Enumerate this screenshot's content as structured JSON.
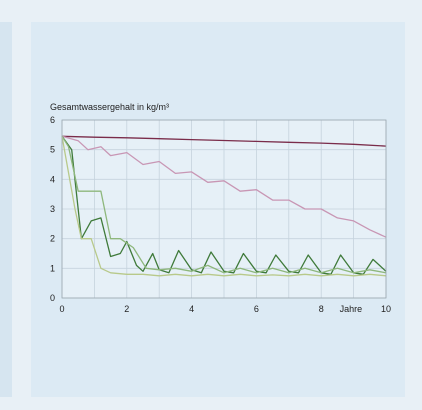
{
  "chart_data": {
    "type": "line",
    "ylabel": "Gesamtwassergehalt in kg/m³",
    "xlabel": "Jahre",
    "xlim": [
      0,
      10
    ],
    "ylim": [
      0,
      6
    ],
    "xticks": [
      0,
      2,
      4,
      6,
      8,
      10
    ],
    "yticks": [
      0,
      1,
      2,
      3,
      4,
      5,
      6
    ],
    "grid": true,
    "colors": {
      "series_1": "#7a2c4a",
      "series_2": "#c896b4",
      "series_3": "#3f7a3a",
      "series_4": "#8eb77c",
      "series_5": "#b8c98a",
      "grid": "#c5d3dd",
      "frame": "#9aa7b0"
    },
    "series": [
      {
        "x": [
          0,
          1,
          2,
          3,
          4,
          5,
          6,
          7,
          8,
          9,
          10
        ],
        "y": [
          5.45,
          5.42,
          5.4,
          5.37,
          5.34,
          5.31,
          5.28,
          5.25,
          5.22,
          5.18,
          5.12
        ]
      },
      {
        "x": [
          0,
          0.5,
          0.8,
          1.2,
          1.5,
          2.0,
          2.5,
          3.0,
          3.5,
          4.0,
          4.5,
          5.0,
          5.5,
          6.0,
          6.5,
          7.0,
          7.5,
          8.0,
          8.5,
          9.0,
          9.5,
          10.0
        ],
        "y": [
          5.45,
          5.3,
          5.0,
          5.1,
          4.8,
          4.9,
          4.5,
          4.6,
          4.2,
          4.25,
          3.9,
          3.95,
          3.6,
          3.65,
          3.3,
          3.3,
          3.0,
          3.0,
          2.7,
          2.6,
          2.3,
          2.05
        ]
      },
      {
        "x": [
          0,
          0.3,
          0.6,
          0.9,
          1.2,
          1.5,
          1.8,
          2.0,
          2.3,
          2.5,
          2.8,
          3.0,
          3.3,
          3.6,
          4.0,
          4.3,
          4.6,
          5.0,
          5.3,
          5.6,
          6.0,
          6.3,
          6.6,
          7.0,
          7.3,
          7.6,
          8.0,
          8.3,
          8.6,
          9.0,
          9.3,
          9.6,
          10.0
        ],
        "y": [
          5.45,
          5.0,
          2.0,
          2.6,
          2.7,
          1.4,
          1.5,
          1.9,
          1.1,
          0.9,
          1.5,
          0.95,
          0.85,
          1.6,
          0.95,
          0.85,
          1.55,
          0.9,
          0.85,
          1.5,
          0.9,
          0.85,
          1.45,
          0.9,
          0.85,
          1.45,
          0.85,
          0.8,
          1.45,
          0.85,
          0.8,
          1.3,
          0.9
        ]
      },
      {
        "x": [
          0,
          0.2,
          0.5,
          0.8,
          1.2,
          1.5,
          1.8,
          2.2,
          2.6,
          3.0,
          3.5,
          4.0,
          4.5,
          5.0,
          5.5,
          6.0,
          6.5,
          7.0,
          7.5,
          8.0,
          8.5,
          9.0,
          9.5,
          10.0
        ],
        "y": [
          5.45,
          5.1,
          3.6,
          3.6,
          3.6,
          2.0,
          2.0,
          1.7,
          1.0,
          0.95,
          1.0,
          0.9,
          1.1,
          0.85,
          1.0,
          0.85,
          1.0,
          0.85,
          1.0,
          0.85,
          1.0,
          0.85,
          0.95,
          0.85
        ]
      },
      {
        "x": [
          0,
          0.4,
          0.6,
          0.9,
          1.2,
          1.5,
          2.0,
          2.5,
          3.0,
          3.5,
          4.0,
          4.5,
          5.0,
          5.5,
          6.0,
          6.5,
          7.0,
          7.5,
          8.0,
          8.5,
          9.0,
          9.5,
          10.0
        ],
        "y": [
          5.45,
          3.0,
          2.0,
          2.0,
          1.0,
          0.85,
          0.8,
          0.8,
          0.75,
          0.8,
          0.75,
          0.8,
          0.75,
          0.8,
          0.75,
          0.78,
          0.75,
          0.8,
          0.75,
          0.8,
          0.75,
          0.8,
          0.75
        ]
      }
    ]
  }
}
